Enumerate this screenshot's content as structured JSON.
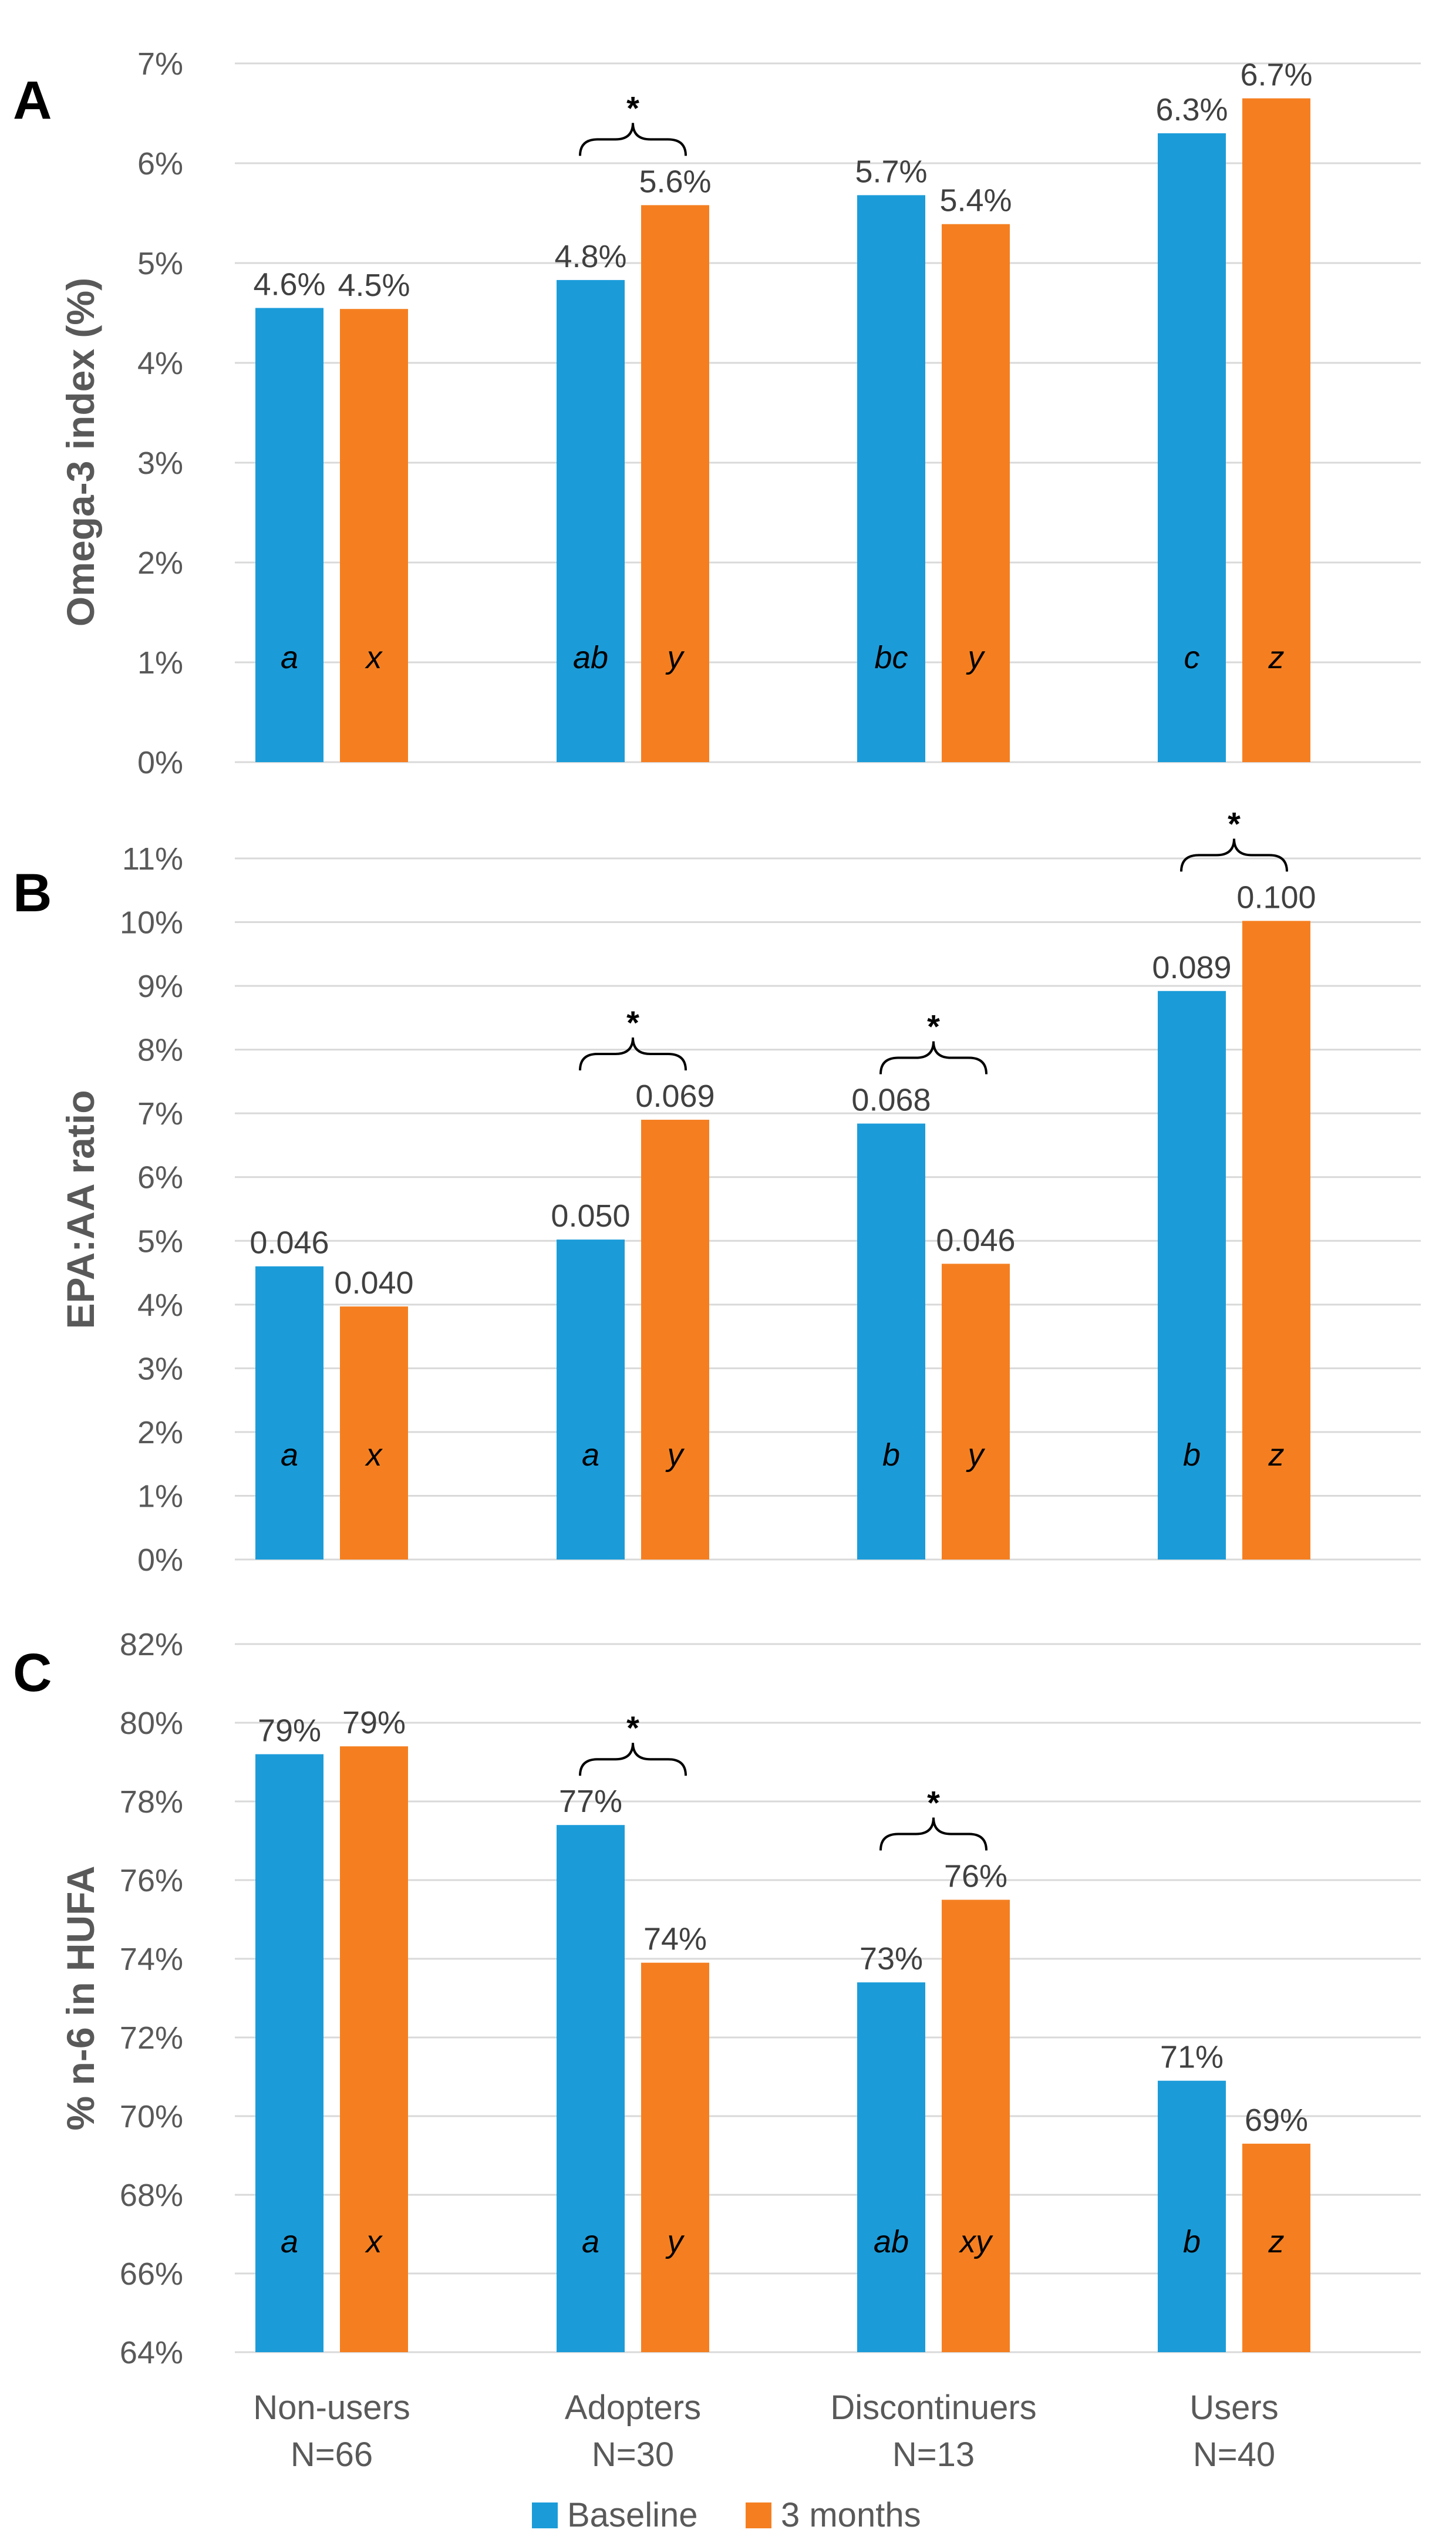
{
  "colors": {
    "baseline": "#1b9cd9",
    "three_months": "#f57f20",
    "grid": "#d9d9d9",
    "axis_text": "#595959"
  },
  "legend": {
    "entries": [
      "Baseline",
      "3 months"
    ]
  },
  "categories": [
    {
      "name": "Non-users",
      "n": "N=66"
    },
    {
      "name": "Adopters",
      "n": "N=30"
    },
    {
      "name": "Discontinuers",
      "n": "N=13"
    },
    {
      "name": "Users",
      "n": "N=40"
    }
  ],
  "chart_data": [
    {
      "type": "bar",
      "panel": "A",
      "ylabel": "Omega-3 index (%)",
      "ylim": [
        0,
        7
      ],
      "yticks": [
        0,
        1,
        2,
        3,
        4,
        5,
        6,
        7
      ],
      "ytick_labels": [
        "0%",
        "1%",
        "2%",
        "3%",
        "4%",
        "5%",
        "6%",
        "7%"
      ],
      "categories": [
        "Non-users",
        "Adopters",
        "Discontinuers",
        "Users"
      ],
      "series": [
        {
          "name": "Baseline",
          "values": [
            4.55,
            4.83,
            5.68,
            6.3
          ],
          "labels": [
            "4.6%",
            "4.8%",
            "5.7%",
            "6.3%"
          ],
          "letters": [
            "a",
            "ab",
            "bc",
            "c"
          ]
        },
        {
          "name": "3 months",
          "values": [
            4.54,
            5.58,
            5.39,
            6.65
          ],
          "labels": [
            "4.5%",
            "5.6%",
            "5.4%",
            "6.7%"
          ],
          "letters": [
            "x",
            "y",
            "y",
            "z"
          ]
        }
      ],
      "significance": [
        {
          "category": "Adopters",
          "label": "*"
        }
      ]
    },
    {
      "type": "bar",
      "panel": "B",
      "ylabel": "EPA:AA ratio",
      "ylim": [
        0,
        11
      ],
      "yticks": [
        0,
        1,
        2,
        3,
        4,
        5,
        6,
        7,
        8,
        9,
        10,
        11
      ],
      "ytick_labels": [
        "0%",
        "1%",
        "2%",
        "3%",
        "4%",
        "5%",
        "6%",
        "7%",
        "8%",
        "9%",
        "10%",
        "11%"
      ],
      "categories": [
        "Non-users",
        "Adopters",
        "Discontinuers",
        "Users"
      ],
      "series": [
        {
          "name": "Baseline",
          "values": [
            4.6,
            5.02,
            6.84,
            8.92
          ],
          "labels": [
            "0.046",
            "0.050",
            "0.068",
            "0.089"
          ],
          "letters": [
            "a",
            "a",
            "b",
            "b"
          ]
        },
        {
          "name": "3 months",
          "values": [
            3.97,
            6.9,
            4.64,
            10.02
          ],
          "labels": [
            "0.040",
            "0.069",
            "0.046",
            "0.100"
          ],
          "letters": [
            "x",
            "y",
            "y",
            "z"
          ]
        }
      ],
      "significance": [
        {
          "category": "Adopters",
          "label": "*"
        },
        {
          "category": "Discontinuers",
          "label": "*"
        },
        {
          "category": "Users",
          "label": "*"
        }
      ]
    },
    {
      "type": "bar",
      "panel": "C",
      "ylabel": "% n-6 in HUFA",
      "ylim": [
        64,
        82
      ],
      "yticks": [
        64,
        66,
        68,
        70,
        72,
        74,
        76,
        78,
        80,
        82
      ],
      "ytick_labels": [
        "64%",
        "66%",
        "68%",
        "70%",
        "72%",
        "74%",
        "76%",
        "78%",
        "80%",
        "82%"
      ],
      "categories": [
        "Non-users",
        "Adopters",
        "Discontinuers",
        "Users"
      ],
      "series": [
        {
          "name": "Baseline",
          "values": [
            79.2,
            77.4,
            73.4,
            70.9
          ],
          "labels": [
            "79%",
            "77%",
            "73%",
            "71%"
          ],
          "letters": [
            "a",
            "a",
            "ab",
            "b"
          ]
        },
        {
          "name": "3 months",
          "values": [
            79.4,
            73.9,
            75.5,
            69.3
          ],
          "labels": [
            "79%",
            "74%",
            "76%",
            "69%"
          ],
          "letters": [
            "x",
            "y",
            "xy",
            "z"
          ]
        }
      ],
      "significance": [
        {
          "category": "Adopters",
          "label": "*"
        },
        {
          "category": "Discontinuers",
          "label": "*"
        }
      ]
    }
  ]
}
